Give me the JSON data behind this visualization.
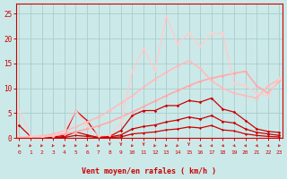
{
  "x": [
    0,
    1,
    2,
    3,
    4,
    5,
    6,
    7,
    8,
    9,
    10,
    11,
    12,
    13,
    14,
    15,
    16,
    17,
    18,
    19,
    20,
    21,
    22,
    23
  ],
  "background_color": "#cce9e9",
  "grid_color": "#aacccc",
  "xlabel": "Vent moyen/en rafales ( km/h )",
  "tick_color": "#cc0000",
  "ylim": [
    0,
    27
  ],
  "xlim": [
    -0.3,
    23.3
  ],
  "yticks": [
    0,
    5,
    10,
    15,
    20,
    25
  ],
  "lines": [
    {
      "y": [
        2.5,
        0.3,
        0.1,
        0.2,
        0.5,
        5.5,
        3.5,
        0.2,
        0.3,
        1.5,
        4.5,
        5.5,
        5.5,
        6.5,
        6.5,
        7.5,
        7.2,
        8.0,
        5.8,
        5.2,
        3.5,
        1.8,
        1.3,
        1.1
      ],
      "color": "#cc0000",
      "lw": 0.9,
      "marker": "D",
      "ms": 1.8
    },
    {
      "y": [
        0.0,
        0.0,
        0.0,
        0.0,
        0.3,
        1.2,
        0.6,
        0.1,
        0.2,
        0.6,
        1.8,
        2.3,
        2.6,
        3.2,
        3.6,
        4.2,
        3.8,
        4.5,
        3.3,
        3.0,
        1.8,
        1.1,
        0.8,
        0.5
      ],
      "color": "#cc0000",
      "lw": 0.9,
      "marker": "D",
      "ms": 1.8
    },
    {
      "y": [
        0.0,
        0.0,
        0.0,
        0.0,
        0.1,
        0.5,
        0.3,
        0.05,
        0.1,
        0.2,
        0.8,
        1.0,
        1.2,
        1.6,
        1.8,
        2.2,
        2.0,
        2.5,
        1.6,
        1.4,
        0.8,
        0.5,
        0.3,
        0.2
      ],
      "color": "#cc0000",
      "lw": 0.9,
      "marker": "D",
      "ms": 1.5
    },
    {
      "y": [
        0.1,
        0.1,
        0.2,
        0.4,
        0.8,
        1.2,
        1.8,
        2.4,
        3.2,
        4.2,
        5.2,
        6.3,
        7.4,
        8.5,
        9.5,
        10.5,
        11.4,
        12.0,
        12.5,
        13.0,
        13.4,
        10.5,
        9.0,
        11.5
      ],
      "color": "#ffaaaa",
      "lw": 1.2,
      "marker": "D",
      "ms": 2.0
    },
    {
      "y": [
        0.2,
        0.2,
        0.4,
        0.8,
        1.4,
        2.2,
        3.2,
        4.2,
        5.5,
        7.0,
        8.5,
        10.2,
        11.8,
        13.2,
        14.5,
        15.5,
        14.0,
        11.5,
        10.0,
        9.0,
        8.5,
        8.0,
        10.5,
        11.8
      ],
      "color": "#ffbbbb",
      "lw": 1.2,
      "marker": "D",
      "ms": 2.0
    },
    {
      "y": [
        5.5,
        0.4,
        0.2,
        0.4,
        1.3,
        5.5,
        2.5,
        0.4,
        0.5,
        3.0,
        13.5,
        18.0,
        13.5,
        24.5,
        19.0,
        21.0,
        18.5,
        21.0,
        21.0,
        11.0,
        10.5,
        9.0,
        8.5,
        12.0
      ],
      "color": "#ffcccc",
      "lw": 1.0,
      "marker": "D",
      "ms": 2.0
    }
  ],
  "arrow_color": "#cc2222",
  "arrow_angles": [
    225,
    225,
    225,
    225,
    225,
    225,
    225,
    225,
    270,
    270,
    225,
    270,
    225,
    225,
    225,
    270,
    315,
    315,
    315,
    315,
    315,
    315,
    315,
    225
  ]
}
